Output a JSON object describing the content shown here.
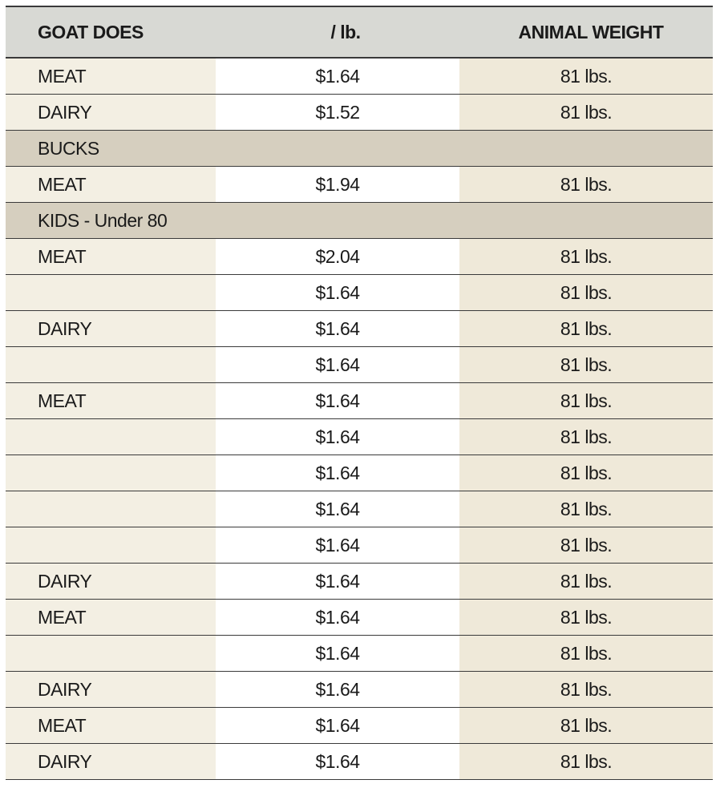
{
  "header": {
    "col1": "GOAT DOES",
    "col2": "/ lb.",
    "col3": "ANIMAL WEIGHT"
  },
  "does_rows": [
    {
      "type": "MEAT",
      "price": "$1.64",
      "weight": "81 lbs."
    },
    {
      "type": "DAIRY",
      "price": "$1.52",
      "weight": "81 lbs."
    }
  ],
  "bucks_section": "BUCKS",
  "bucks_rows": [
    {
      "type": "MEAT",
      "price": "$1.94",
      "weight": "81 lbs."
    }
  ],
  "kids_section": "KIDS - Under 80",
  "kids_rows": [
    {
      "type": "MEAT",
      "price": "$2.04",
      "weight": "81 lbs."
    },
    {
      "type": "",
      "price": "$1.64",
      "weight": "81 lbs."
    },
    {
      "type": "DAIRY",
      "price": "$1.64",
      "weight": "81 lbs."
    },
    {
      "type": "",
      "price": "$1.64",
      "weight": "81 lbs."
    },
    {
      "type": "MEAT",
      "price": "$1.64",
      "weight": "81 lbs."
    },
    {
      "type": "",
      "price": "$1.64",
      "weight": "81 lbs."
    },
    {
      "type": "",
      "price": "$1.64",
      "weight": "81 lbs."
    },
    {
      "type": "",
      "price": "$1.64",
      "weight": "81 lbs."
    },
    {
      "type": "",
      "price": "$1.64",
      "weight": "81 lbs."
    },
    {
      "type": "DAIRY",
      "price": "$1.64",
      "weight": "81 lbs."
    },
    {
      "type": "MEAT",
      "price": "$1.64",
      "weight": "81 lbs."
    },
    {
      "type": "",
      "price": "$1.64",
      "weight": "81 lbs."
    },
    {
      "type": "DAIRY",
      "price": "$1.64",
      "weight": "81 lbs."
    },
    {
      "type": "MEAT",
      "price": "$1.64",
      "weight": "81 lbs."
    },
    {
      "type": "DAIRY",
      "price": "$1.64",
      "weight": "81 lbs."
    }
  ],
  "colors": {
    "header_bg": "#d8d9d4",
    "section_bg": "#d6cfbf",
    "col1_bg": "#f3efe3",
    "col3_bg": "#efe9d9"
  }
}
